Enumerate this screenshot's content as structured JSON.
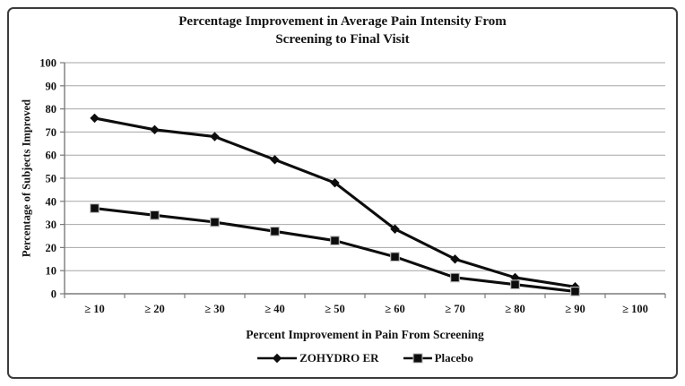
{
  "window": {
    "background": "#ffffff",
    "frame_border_color": "#3c3c3c"
  },
  "chart_data": {
    "type": "line",
    "title_lines": [
      "Percentage Improvement in Average Pain Intensity From",
      "Screening to Final Visit"
    ],
    "xlabel": "Percent Improvement in Pain From Screening",
    "ylabel": "Percentage of Subjects Improved",
    "categories": [
      "≥ 10",
      "≥ 20",
      "≥ 30",
      "≥ 40",
      "≥ 50",
      "≥ 60",
      "≥ 70",
      "≥ 80",
      "≥ 90",
      "≥ 100"
    ],
    "series": [
      {
        "name": "ZOHYDRO ER",
        "marker": "diamond",
        "color": "#0d0d0d",
        "values": [
          76,
          71,
          68,
          58,
          48,
          28,
          15,
          7,
          3,
          null
        ]
      },
      {
        "name": "Placebo",
        "marker": "square",
        "color": "#0d0d0d",
        "values": [
          37,
          34,
          31,
          27,
          23,
          16,
          7,
          4,
          1,
          null
        ]
      }
    ],
    "ylim": [
      0,
      100
    ],
    "ytick_step": 10,
    "yticks": [
      0,
      10,
      20,
      30,
      40,
      50,
      60,
      70,
      80,
      90,
      100
    ],
    "grid": "horizontal",
    "gridline_color": "#a6a6a6",
    "axis_color": "#7a7a7a",
    "legend_position": "bottom"
  }
}
